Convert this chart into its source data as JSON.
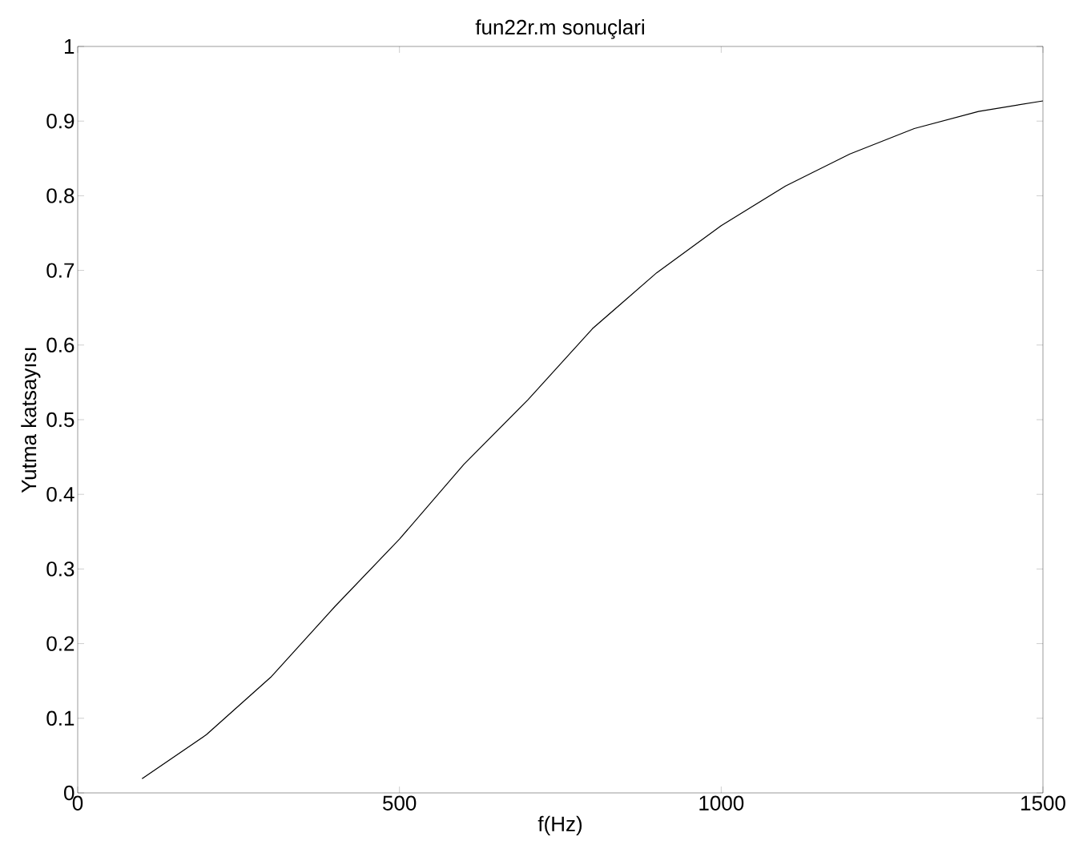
{
  "chart_data": {
    "type": "line",
    "title": "fun22r.m sonuçlari",
    "xlabel": "f(Hz)",
    "ylabel": "Yutma katsayısı",
    "x": [
      100,
      200,
      300,
      400,
      500,
      600,
      700,
      800,
      900,
      1000,
      1100,
      1200,
      1300,
      1400,
      1500
    ],
    "series": [
      {
        "color": "#000000",
        "values": [
          0.019,
          0.078,
          0.155,
          0.25,
          0.34,
          0.44,
          0.527,
          0.622,
          0.697,
          0.76,
          0.813,
          0.856,
          0.89,
          0.913,
          0.927
        ]
      }
    ],
    "xlim": [
      0,
      1500
    ],
    "ylim": [
      0,
      1
    ],
    "xticks": [
      0,
      500,
      1000,
      1500
    ],
    "yticks": [
      0,
      0.1,
      0.2,
      0.3,
      0.4,
      0.5,
      0.6,
      0.7,
      0.8,
      0.9,
      1
    ],
    "grid": false,
    "marker": "none",
    "line_style": "solid"
  }
}
